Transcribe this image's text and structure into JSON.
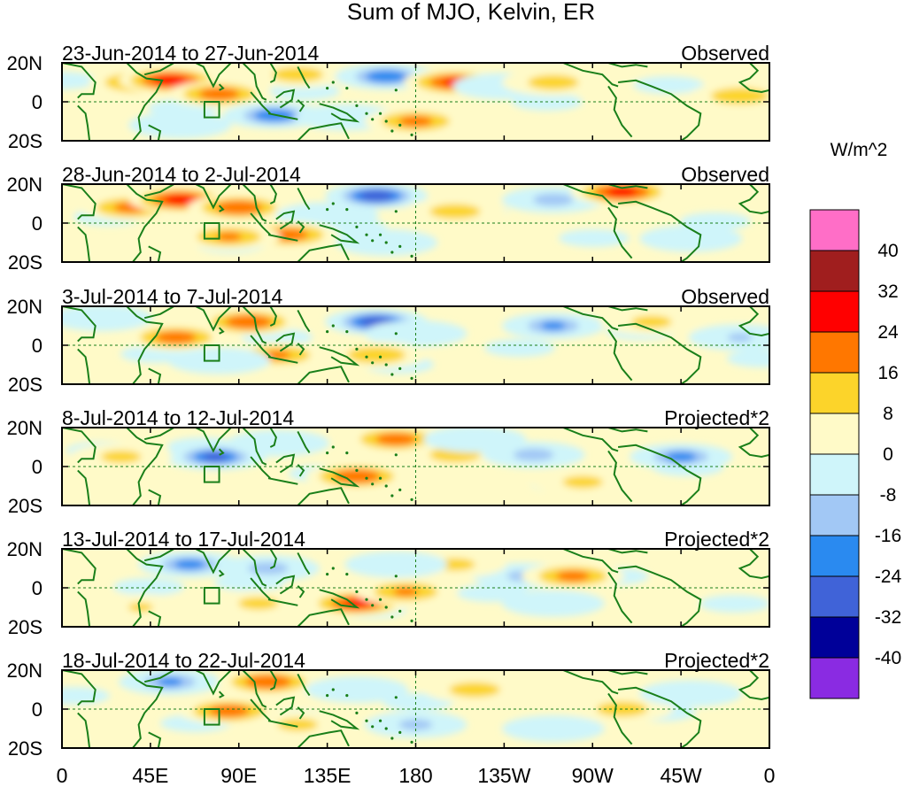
{
  "chart_data": {
    "type": "heatmap",
    "title": "Sum of MJO, Kelvin, ER",
    "x_ticks": [
      "0",
      "45E",
      "90E",
      "135E",
      "180",
      "135W",
      "90W",
      "45W",
      "0"
    ],
    "y_ticks": [
      "20N",
      "0",
      "20S"
    ],
    "panels": [
      {
        "period": "23-Jun-2014 to 27-Jun-2014",
        "label": "Observed",
        "blobs": [
          {
            "lon": 40,
            "lat": 10,
            "v": 20
          },
          {
            "lon": 55,
            "lat": 11,
            "v": 27
          },
          {
            "lon": 80,
            "lat": 4,
            "v": 20
          },
          {
            "lon": 120,
            "lat": 14,
            "v": 12
          },
          {
            "lon": 165,
            "lat": 13,
            "v": -30
          },
          {
            "lon": 200,
            "lat": 10,
            "v": 24
          },
          {
            "lon": 225,
            "lat": 8,
            "v": -14
          },
          {
            "lon": 250,
            "lat": 10,
            "v": 12
          },
          {
            "lon": 108,
            "lat": -7,
            "v": -30
          },
          {
            "lon": 145,
            "lat": -8,
            "v": -14
          },
          {
            "lon": 180,
            "lat": -10,
            "v": 18
          },
          {
            "lon": 345,
            "lat": 3,
            "v": 14
          },
          {
            "lon": 60,
            "lat": -12,
            "v": -8
          }
        ]
      },
      {
        "period": "28-Jun-2014 to 2-Jul-2014",
        "label": "Observed",
        "blobs": [
          {
            "lon": 35,
            "lat": 8,
            "v": 18
          },
          {
            "lon": 60,
            "lat": 12,
            "v": 26
          },
          {
            "lon": 90,
            "lat": 8,
            "v": 22
          },
          {
            "lon": 160,
            "lat": 14,
            "v": -36
          },
          {
            "lon": 135,
            "lat": 4,
            "v": -14
          },
          {
            "lon": 115,
            "lat": -6,
            "v": 20
          },
          {
            "lon": 85,
            "lat": -7,
            "v": 16
          },
          {
            "lon": 200,
            "lat": 6,
            "v": 12
          },
          {
            "lon": 250,
            "lat": 12,
            "v": -20
          },
          {
            "lon": 285,
            "lat": 16,
            "v": 26
          },
          {
            "lon": 165,
            "lat": -10,
            "v": -12
          },
          {
            "lon": 320,
            "lat": -8,
            "v": -10
          }
        ]
      },
      {
        "period": "3-Jul-2014 to 7-Jul-2014",
        "label": "Observed",
        "blobs": [
          {
            "lon": 58,
            "lat": 4,
            "v": 20
          },
          {
            "lon": 95,
            "lat": 12,
            "v": 22
          },
          {
            "lon": 160,
            "lat": 12,
            "v": -36
          },
          {
            "lon": 180,
            "lat": 6,
            "v": -12
          },
          {
            "lon": 250,
            "lat": 10,
            "v": -24
          },
          {
            "lon": 110,
            "lat": -5,
            "v": 16
          },
          {
            "lon": 160,
            "lat": -5,
            "v": 14
          },
          {
            "lon": 80,
            "lat": -8,
            "v": -14
          },
          {
            "lon": 20,
            "lat": 14,
            "v": -10
          },
          {
            "lon": 345,
            "lat": 4,
            "v": -16
          },
          {
            "lon": 300,
            "lat": 12,
            "v": 10
          }
        ]
      },
      {
        "period": "8-Jul-2014 to 12-Jul-2014",
        "label": "Projected*2",
        "blobs": [
          {
            "lon": 78,
            "lat": 5,
            "v": -32
          },
          {
            "lon": 110,
            "lat": 12,
            "v": -14
          },
          {
            "lon": 150,
            "lat": -5,
            "v": 22
          },
          {
            "lon": 170,
            "lat": 14,
            "v": 20
          },
          {
            "lon": 200,
            "lat": 6,
            "v": 12
          },
          {
            "lon": 240,
            "lat": 6,
            "v": -20
          },
          {
            "lon": 315,
            "lat": 5,
            "v": -26
          },
          {
            "lon": 210,
            "lat": 14,
            "v": -8
          },
          {
            "lon": 30,
            "lat": 5,
            "v": 10
          },
          {
            "lon": 265,
            "lat": -8,
            "v": 10
          }
        ]
      },
      {
        "period": "13-Jul-2014 to 17-Jul-2014",
        "label": "Projected*2",
        "blobs": [
          {
            "lon": 65,
            "lat": 12,
            "v": -26
          },
          {
            "lon": 105,
            "lat": 10,
            "v": -20
          },
          {
            "lon": 150,
            "lat": -8,
            "v": 24
          },
          {
            "lon": 175,
            "lat": -2,
            "v": 16
          },
          {
            "lon": 100,
            "lat": -8,
            "v": 10
          },
          {
            "lon": 235,
            "lat": 6,
            "v": -18
          },
          {
            "lon": 260,
            "lat": 6,
            "v": 18
          },
          {
            "lon": 200,
            "lat": 12,
            "v": 10
          },
          {
            "lon": 170,
            "lat": 12,
            "v": -12
          },
          {
            "lon": 250,
            "lat": -8,
            "v": -10
          },
          {
            "lon": 40,
            "lat": -10,
            "v": 8
          }
        ]
      },
      {
        "period": "18-Jul-2014 to 22-Jul-2014",
        "label": "Projected*2",
        "blobs": [
          {
            "lon": 55,
            "lat": 14,
            "v": -24
          },
          {
            "lon": 85,
            "lat": -1,
            "v": 20
          },
          {
            "lon": 105,
            "lat": 14,
            "v": 22
          },
          {
            "lon": 150,
            "lat": 10,
            "v": -12
          },
          {
            "lon": 180,
            "lat": -8,
            "v": -18
          },
          {
            "lon": 210,
            "lat": 10,
            "v": 12
          },
          {
            "lon": 120,
            "lat": -8,
            "v": 10
          },
          {
            "lon": 285,
            "lat": 0,
            "v": 12
          },
          {
            "lon": 250,
            "lat": -10,
            "v": -12
          },
          {
            "lon": 320,
            "lat": 8,
            "v": -8
          }
        ]
      }
    ],
    "colorbar": {
      "unit": "W/m^2",
      "levels": [
        40,
        32,
        24,
        16,
        8,
        0,
        -8,
        -16,
        -24,
        -32,
        -40
      ],
      "colors": [
        "#ff6ec7",
        "#a01e1e",
        "#ff0000",
        "#ff7700",
        "#fcd42a",
        "#fffac8",
        "#cff5fa",
        "#a2c8f5",
        "#2a8af0",
        "#4063d8",
        "#000099",
        "#8a2be2"
      ]
    }
  }
}
